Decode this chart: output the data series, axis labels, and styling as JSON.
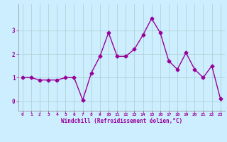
{
  "x": [
    0,
    1,
    2,
    3,
    4,
    5,
    6,
    7,
    8,
    9,
    10,
    11,
    12,
    13,
    14,
    15,
    16,
    17,
    18,
    19,
    20,
    21,
    22,
    23
  ],
  "y": [
    1.0,
    1.0,
    0.9,
    0.9,
    0.9,
    1.0,
    1.0,
    0.05,
    1.2,
    1.9,
    2.9,
    1.9,
    1.9,
    2.2,
    2.8,
    3.5,
    2.9,
    1.7,
    1.35,
    2.05,
    1.35,
    1.0,
    1.5,
    0.1
  ],
  "line_color": "#990099",
  "marker": "D",
  "markersize": 2.5,
  "linewidth": 1.0,
  "bg_color": "#cceeff",
  "grid_color": "#aacccc",
  "xlabel": "Windchill (Refroidissement éolien,°C)",
  "xlabel_color": "#990099",
  "tick_color": "#990099",
  "yticks": [
    0,
    1,
    2,
    3
  ],
  "xticks": [
    0,
    1,
    2,
    3,
    4,
    5,
    6,
    7,
    8,
    9,
    10,
    11,
    12,
    13,
    14,
    15,
    16,
    17,
    18,
    19,
    20,
    21,
    22,
    23
  ],
  "ylim": [
    -0.4,
    4.1
  ],
  "xlim": [
    -0.5,
    23.5
  ]
}
